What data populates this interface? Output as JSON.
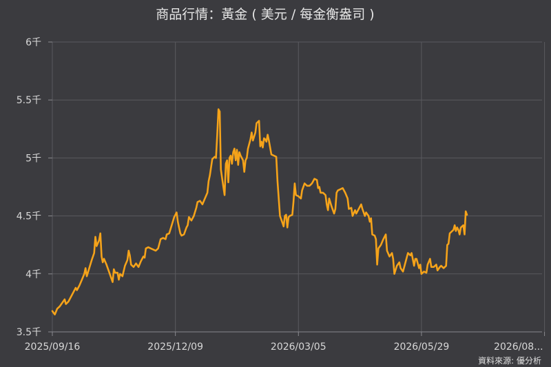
{
  "chart_data": {
    "type": "line",
    "title": "商品行情：黃金 ( 美元 / 每金衡盎司 )",
    "xlabel": "",
    "ylabel": "",
    "y_ticks": [
      "3.5千",
      "4千",
      "4.5千",
      "5千",
      "5.5千",
      "6千"
    ],
    "y_tick_values": [
      3500,
      4000,
      4500,
      5000,
      5500,
      6000
    ],
    "ylim": [
      3500,
      6000
    ],
    "x_ticks": [
      "2025/09/16",
      "2025/12/09",
      "2026/03/05",
      "2026/05/29",
      "2026/08..."
    ],
    "x_tick_positions": [
      0,
      100,
      200,
      300,
      400
    ],
    "xlim": [
      0,
      398
    ],
    "grid": true,
    "color": "#f5a31a",
    "series": [
      {
        "points": [
          [
            0,
            3680
          ],
          [
            2,
            3650
          ],
          [
            4,
            3700
          ],
          [
            6,
            3720
          ],
          [
            8,
            3750
          ],
          [
            10,
            3780
          ],
          [
            11,
            3740
          ],
          [
            13,
            3760
          ],
          [
            15,
            3800
          ],
          [
            17,
            3840
          ],
          [
            19,
            3880
          ],
          [
            20,
            3860
          ],
          [
            22,
            3900
          ],
          [
            24,
            3950
          ],
          [
            26,
            4000
          ],
          [
            27,
            4050
          ],
          [
            28,
            3980
          ],
          [
            30,
            4050
          ],
          [
            32,
            4120
          ],
          [
            34,
            4180
          ],
          [
            35,
            4320
          ],
          [
            36,
            4240
          ],
          [
            38,
            4290
          ],
          [
            39,
            4350
          ],
          [
            40,
            4150
          ],
          [
            41,
            4100
          ],
          [
            42,
            4130
          ],
          [
            44,
            4080
          ],
          [
            46,
            4020
          ],
          [
            48,
            3960
          ],
          [
            49,
            3930
          ],
          [
            50,
            4040
          ],
          [
            51,
            4010
          ],
          [
            53,
            4010
          ],
          [
            54,
            3950
          ],
          [
            55,
            4000
          ],
          [
            57,
            3980
          ],
          [
            59,
            4070
          ],
          [
            61,
            4120
          ],
          [
            62,
            4200
          ],
          [
            63,
            4160
          ],
          [
            64,
            4080
          ],
          [
            66,
            4060
          ],
          [
            68,
            4090
          ],
          [
            70,
            4060
          ],
          [
            72,
            4110
          ],
          [
            74,
            4150
          ],
          [
            75,
            4140
          ],
          [
            76,
            4220
          ],
          [
            78,
            4230
          ],
          [
            80,
            4220
          ],
          [
            82,
            4210
          ],
          [
            84,
            4200
          ],
          [
            86,
            4220
          ],
          [
            88,
            4300
          ],
          [
            90,
            4310
          ],
          [
            92,
            4300
          ],
          [
            93,
            4340
          ],
          [
            95,
            4350
          ],
          [
            97,
            4420
          ],
          [
            99,
            4490
          ],
          [
            101,
            4530
          ],
          [
            102,
            4450
          ],
          [
            104,
            4350
          ],
          [
            105,
            4330
          ],
          [
            107,
            4340
          ],
          [
            109,
            4400
          ],
          [
            110,
            4420
          ],
          [
            111,
            4490
          ],
          [
            113,
            4460
          ],
          [
            115,
            4500
          ],
          [
            117,
            4570
          ],
          [
            118,
            4620
          ],
          [
            120,
            4630
          ],
          [
            122,
            4600
          ],
          [
            124,
            4650
          ],
          [
            126,
            4700
          ],
          [
            127,
            4800
          ],
          [
            128,
            4850
          ],
          [
            130,
            4990
          ],
          [
            132,
            5010
          ],
          [
            133,
            5000
          ],
          [
            134,
            5200
          ],
          [
            135,
            5420
          ],
          [
            136,
            5400
          ],
          [
            137,
            4900
          ],
          [
            139,
            4750
          ],
          [
            140,
            4680
          ],
          [
            141,
            4950
          ],
          [
            142,
            4980
          ],
          [
            143,
            4790
          ],
          [
            144,
            5000
          ],
          [
            145,
            5020
          ],
          [
            146,
            4950
          ],
          [
            147,
            5050
          ],
          [
            148,
            5080
          ],
          [
            149,
            4980
          ],
          [
            150,
            5070
          ],
          [
            151,
            4940
          ],
          [
            152,
            5050
          ],
          [
            153,
            5020
          ],
          [
            155,
            4980
          ],
          [
            156,
            4880
          ],
          [
            157,
            4980
          ],
          [
            158,
            5000
          ],
          [
            159,
            5080
          ],
          [
            161,
            5160
          ],
          [
            162,
            5220
          ],
          [
            163,
            5150
          ],
          [
            165,
            5220
          ],
          [
            166,
            5300
          ],
          [
            168,
            5320
          ],
          [
            169,
            5100
          ],
          [
            170,
            5140
          ],
          [
            171,
            5090
          ],
          [
            172,
            5170
          ],
          [
            173,
            5160
          ],
          [
            174,
            5140
          ],
          [
            175,
            5200
          ],
          [
            176,
            5150
          ],
          [
            178,
            5030
          ],
          [
            180,
            5020
          ],
          [
            182,
            5010
          ],
          [
            183,
            4800
          ],
          [
            185,
            4500
          ],
          [
            187,
            4440
          ],
          [
            188,
            4410
          ],
          [
            189,
            4500
          ],
          [
            190,
            4510
          ],
          [
            191,
            4400
          ],
          [
            192,
            4490
          ],
          [
            193,
            4500
          ],
          [
            195,
            4510
          ],
          [
            196,
            4620
          ],
          [
            197,
            4780
          ],
          [
            198,
            4680
          ],
          [
            200,
            4670
          ],
          [
            202,
            4650
          ],
          [
            203,
            4720
          ],
          [
            205,
            4780
          ],
          [
            207,
            4760
          ],
          [
            209,
            4760
          ],
          [
            211,
            4780
          ],
          [
            212,
            4800
          ],
          [
            213,
            4820
          ],
          [
            215,
            4810
          ],
          [
            216,
            4740
          ],
          [
            217,
            4750
          ],
          [
            218,
            4700
          ],
          [
            220,
            4700
          ],
          [
            222,
            4680
          ],
          [
            223,
            4600
          ],
          [
            224,
            4550
          ],
          [
            225,
            4650
          ],
          [
            227,
            4580
          ],
          [
            229,
            4520
          ],
          [
            230,
            4560
          ],
          [
            231,
            4700
          ],
          [
            232,
            4720
          ],
          [
            234,
            4730
          ],
          [
            236,
            4740
          ],
          [
            238,
            4700
          ],
          [
            240,
            4650
          ],
          [
            241,
            4560
          ],
          [
            243,
            4570
          ],
          [
            244,
            4500
          ],
          [
            246,
            4550
          ],
          [
            247,
            4520
          ],
          [
            249,
            4560
          ],
          [
            251,
            4600
          ],
          [
            252,
            4560
          ],
          [
            254,
            4500
          ],
          [
            255,
            4530
          ],
          [
            257,
            4500
          ],
          [
            258,
            4450
          ],
          [
            259,
            4480
          ],
          [
            260,
            4340
          ],
          [
            262,
            4330
          ],
          [
            263,
            4300
          ],
          [
            264,
            4080
          ],
          [
            265,
            4220
          ],
          [
            267,
            4250
          ],
          [
            269,
            4300
          ],
          [
            271,
            4340
          ],
          [
            272,
            4200
          ],
          [
            274,
            4150
          ],
          [
            276,
            4180
          ],
          [
            277,
            4130
          ],
          [
            278,
            4000
          ],
          [
            280,
            4070
          ],
          [
            282,
            4100
          ],
          [
            283,
            4050
          ],
          [
            285,
            4020
          ],
          [
            287,
            4100
          ],
          [
            289,
            4180
          ],
          [
            291,
            4160
          ],
          [
            292,
            4180
          ],
          [
            294,
            4070
          ],
          [
            295,
            4130
          ],
          [
            296,
            4130
          ],
          [
            298,
            4050
          ],
          [
            299,
            4080
          ],
          [
            300,
            4000
          ],
          [
            302,
            4020
          ],
          [
            304,
            4010
          ],
          [
            305,
            4080
          ],
          [
            307,
            4130
          ],
          [
            308,
            4060
          ],
          [
            310,
            4060
          ],
          [
            312,
            4080
          ],
          [
            313,
            4030
          ],
          [
            315,
            4060
          ],
          [
            316,
            4070
          ],
          [
            318,
            4050
          ],
          [
            320,
            4070
          ],
          [
            321,
            4250
          ],
          [
            322,
            4260
          ],
          [
            323,
            4350
          ],
          [
            324,
            4360
          ],
          [
            326,
            4380
          ],
          [
            327,
            4420
          ],
          [
            328,
            4370
          ],
          [
            329,
            4400
          ],
          [
            330,
            4380
          ],
          [
            331,
            4340
          ],
          [
            332,
            4400
          ],
          [
            334,
            4420
          ],
          [
            335,
            4340
          ],
          [
            336,
            4540
          ],
          [
            337,
            4510
          ]
        ]
      }
    ]
  },
  "source": {
    "label": "資料來源: 優分析"
  }
}
